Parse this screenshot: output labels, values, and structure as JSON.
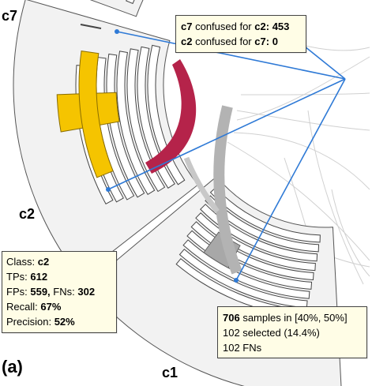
{
  "classes": {
    "c7": "c7",
    "c2": "c2",
    "c1": "c1"
  },
  "panel_label": "(a)",
  "confusion_tooltip": {
    "line1": {
      "cls_a": "c7",
      "text": "confused for",
      "cls_b": "c2:",
      "value": "453"
    },
    "line2": {
      "cls_a": "c2",
      "text": "confused for",
      "cls_b": "c7:",
      "value": "0"
    }
  },
  "class_tooltip": {
    "class_label": "Class:",
    "class_value": "c2",
    "tps_label": "TPs:",
    "tps_value": "612",
    "fps_label": "FPs:",
    "fps_value": "559,",
    "fns_label": "FNs:",
    "fns_value": "302",
    "recall_label": "Recall:",
    "recall_value": "67%",
    "precision_label": "Precision:",
    "precision_value": "52%"
  },
  "bin_tooltip": {
    "count": "706",
    "range_text": "samples in [40%, 50%]",
    "selected_text": "102 selected (14.4%)",
    "fns_text": "102 FNs"
  },
  "colors": {
    "c7_highlight": "#ee1111",
    "c2_highlight": "#f5c400",
    "link_confusion": "#b5234a",
    "link_gray": "#b3b3b3",
    "leader_line": "#2f7ad6",
    "sector_fill": "#f2f2f2"
  }
}
